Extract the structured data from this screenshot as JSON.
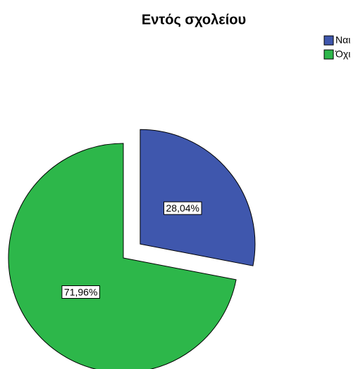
{
  "chart_data": {
    "type": "pie",
    "title": "Εντός σχολείου",
    "categories": [
      "Ναι",
      "Όχι"
    ],
    "values": [
      28.04,
      71.96
    ],
    "value_labels": [
      "28,04%",
      "71,96%"
    ],
    "colors": [
      "#3f57ad",
      "#2db74a"
    ],
    "exploded": [
      true,
      false
    ],
    "legend": "top-right"
  }
}
